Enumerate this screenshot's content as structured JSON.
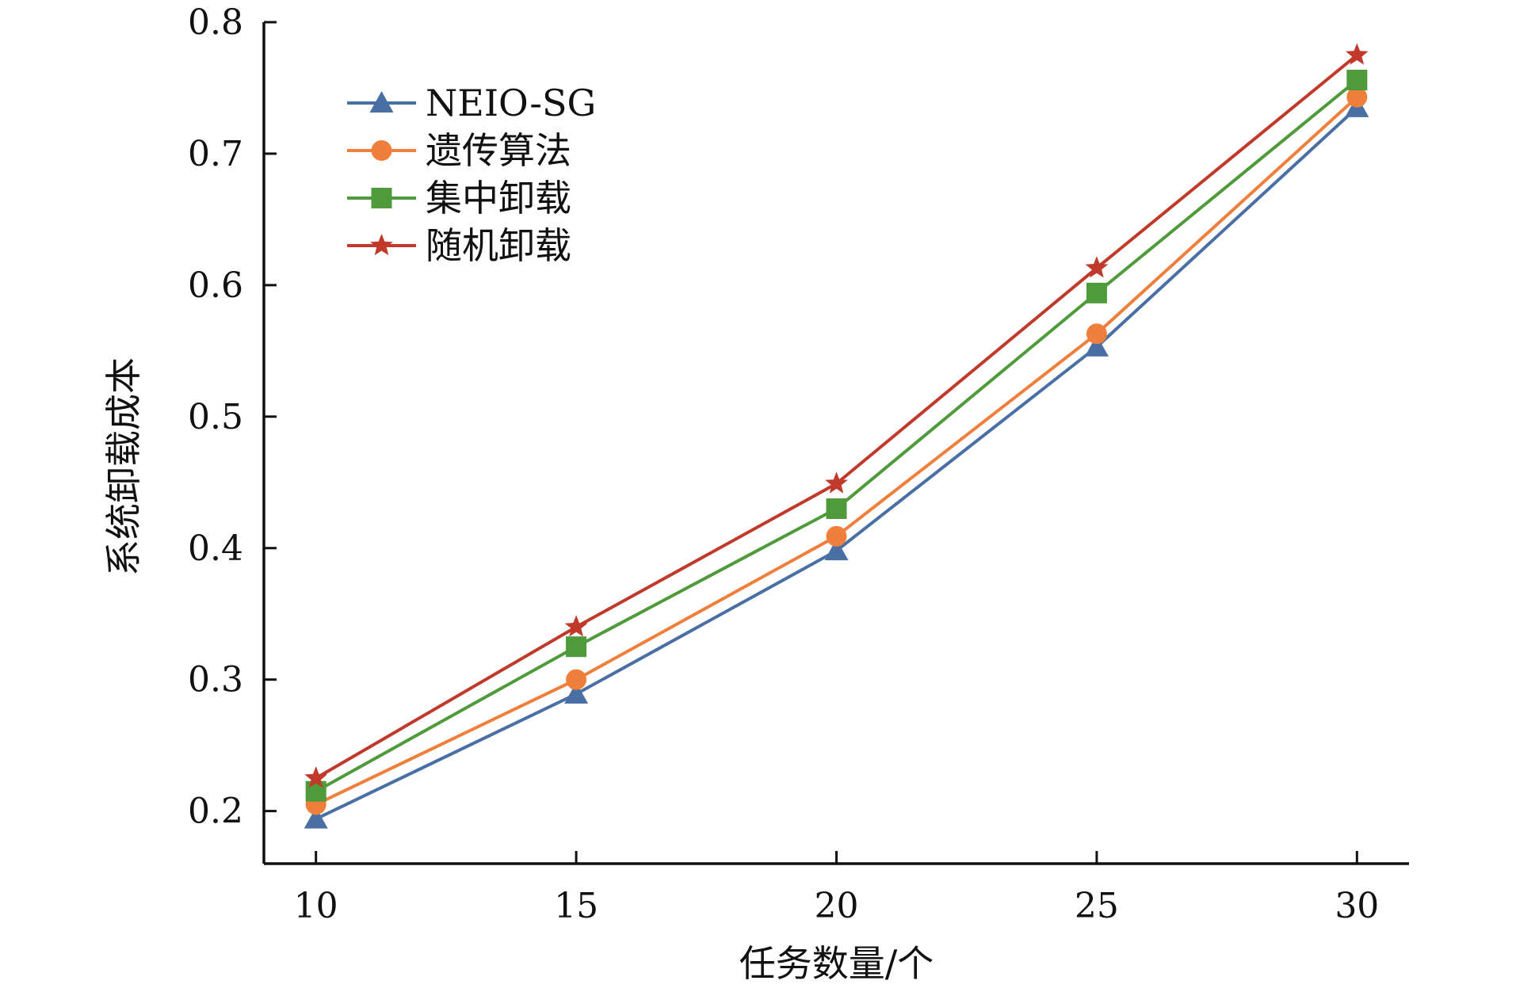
{
  "chart_data": {
    "type": "line",
    "title": "",
    "xlabel": "任务数量/个",
    "ylabel": "系统卸载成本",
    "x": [
      10,
      15,
      20,
      25,
      30
    ],
    "xlim": [
      9,
      31
    ],
    "ylim": [
      0.16,
      0.8
    ],
    "xticks": [
      "10",
      "15",
      "20",
      "25",
      "30"
    ],
    "yticks": [
      "0.2",
      "0.3",
      "0.4",
      "0.5",
      "0.6",
      "0.7",
      "0.8"
    ],
    "grid": false,
    "legend_position": "top-left",
    "series": [
      {
        "name": "NEIO-SG",
        "color": "#4a6fa5",
        "marker": "triangle",
        "values": [
          0.194,
          0.289,
          0.398,
          0.553,
          0.735
        ]
      },
      {
        "name": "遗传算法",
        "color": "#f07f3c",
        "marker": "circle",
        "values": [
          0.205,
          0.3,
          0.409,
          0.563,
          0.743
        ]
      },
      {
        "name": "集中卸载",
        "color": "#4f9a3a",
        "marker": "square",
        "values": [
          0.215,
          0.325,
          0.43,
          0.594,
          0.756
        ]
      },
      {
        "name": "随机卸载",
        "color": "#c0392b",
        "marker": "star",
        "values": [
          0.225,
          0.34,
          0.449,
          0.613,
          0.775
        ]
      }
    ]
  }
}
